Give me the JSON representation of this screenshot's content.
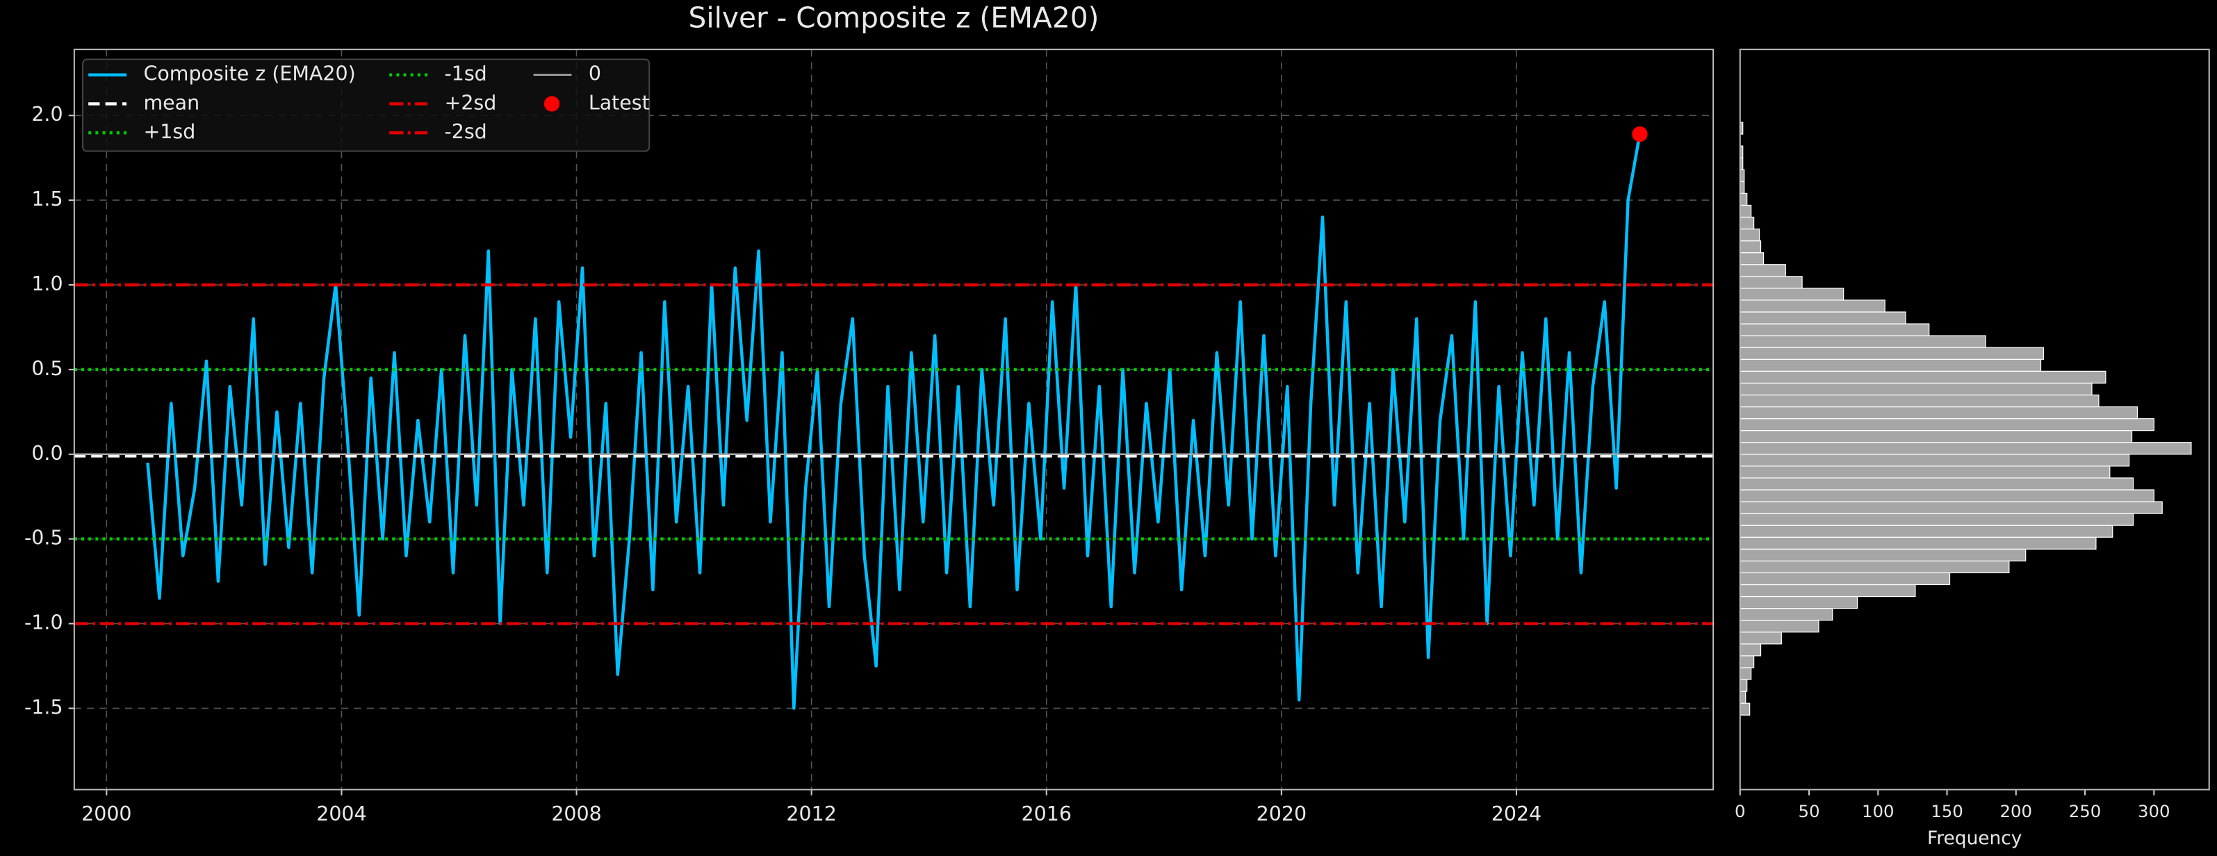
{
  "chart_data": [
    {
      "type": "line",
      "title": "Silver - Composite z (EMA20)",
      "xlim": [
        1999.45,
        2027.35
      ],
      "xticks": [
        2000,
        2004,
        2008,
        2012,
        2016,
        2020,
        2024
      ],
      "ylim": [
        -1.98,
        2.39
      ],
      "yticks": [
        -1.5,
        {
          "value": -1,
          "label": "-1.0"
        },
        -0.5,
        {
          "value": 0,
          "label": "0.0"
        },
        0.5,
        {
          "value": 1,
          "label": "1.0"
        },
        1.5,
        {
          "value": 2,
          "label": "2.0"
        }
      ],
      "grid": true,
      "legend": "upper left",
      "series": [
        {
          "name": "Composite z (EMA20)",
          "color": "#00bfff",
          "x": [
            2000.7,
            2000.9,
            2001.1,
            2001.3,
            2001.5,
            2001.7,
            2001.9,
            2002.1,
            2002.3,
            2002.5,
            2002.7,
            2002.9,
            2003.1,
            2003.3,
            2003.5,
            2003.7,
            2003.9,
            2004.1,
            2004.3,
            2004.5,
            2004.7,
            2004.9,
            2005.1,
            2005.3,
            2005.5,
            2005.7,
            2005.9,
            2006.1,
            2006.3,
            2006.5,
            2006.7,
            2006.9,
            2007.1,
            2007.3,
            2007.5,
            2007.7,
            2007.9,
            2008.1,
            2008.3,
            2008.5,
            2008.7,
            2008.9,
            2009.1,
            2009.3,
            2009.5,
            2009.7,
            2009.9,
            2010.1,
            2010.3,
            2010.5,
            2010.7,
            2010.9,
            2011.1,
            2011.3,
            2011.5,
            2011.7,
            2011.9,
            2012.1,
            2012.3,
            2012.5,
            2012.7,
            2012.9,
            2013.1,
            2013.3,
            2013.5,
            2013.7,
            2013.9,
            2014.1,
            2014.3,
            2014.5,
            2014.7,
            2014.9,
            2015.1,
            2015.3,
            2015.5,
            2015.7,
            2015.9,
            2016.1,
            2016.3,
            2016.5,
            2016.7,
            2016.9,
            2017.1,
            2017.3,
            2017.5,
            2017.7,
            2017.9,
            2018.1,
            2018.3,
            2018.5,
            2018.7,
            2018.9,
            2019.1,
            2019.3,
            2019.5,
            2019.7,
            2019.9,
            2020.1,
            2020.3,
            2020.5,
            2020.7,
            2020.9,
            2021.1,
            2021.3,
            2021.5,
            2021.7,
            2021.9,
            2022.1,
            2022.3,
            2022.5,
            2022.7,
            2022.9,
            2023.1,
            2023.3,
            2023.5,
            2023.7,
            2023.9,
            2024.1,
            2024.3,
            2024.5,
            2024.7,
            2024.9,
            2025.1,
            2025.3,
            2025.5,
            2025.7,
            2025.9,
            2026.1
          ],
          "values": [
            -0.05,
            -0.85,
            0.3,
            -0.6,
            -0.2,
            0.55,
            -0.75,
            0.4,
            -0.3,
            0.8,
            -0.65,
            0.25,
            -0.55,
            0.3,
            -0.7,
            0.45,
            1.0,
            0.1,
            -0.95,
            0.45,
            -0.5,
            0.6,
            -0.6,
            0.2,
            -0.4,
            0.5,
            -0.7,
            0.7,
            -0.3,
            1.2,
            -1.0,
            0.5,
            -0.3,
            0.8,
            -0.7,
            0.9,
            0.1,
            1.1,
            -0.6,
            0.3,
            -1.3,
            -0.5,
            0.6,
            -0.8,
            0.9,
            -0.4,
            0.4,
            -0.7,
            1.0,
            -0.3,
            1.1,
            0.2,
            1.2,
            -0.4,
            0.6,
            -1.5,
            -0.2,
            0.5,
            -0.9,
            0.3,
            0.8,
            -0.6,
            -1.25,
            0.4,
            -0.8,
            0.6,
            -0.4,
            0.7,
            -0.7,
            0.4,
            -0.9,
            0.5,
            -0.3,
            0.8,
            -0.8,
            0.3,
            -0.5,
            0.9,
            -0.2,
            1.0,
            -0.6,
            0.4,
            -0.9,
            0.5,
            -0.7,
            0.3,
            -0.4,
            0.5,
            -0.8,
            0.2,
            -0.6,
            0.6,
            -0.3,
            0.9,
            -0.5,
            0.7,
            -0.6,
            0.4,
            -1.45,
            0.3,
            1.4,
            -0.3,
            0.9,
            -0.7,
            0.3,
            -0.9,
            0.5,
            -0.4,
            0.8,
            -1.2,
            0.2,
            0.7,
            -0.5,
            0.9,
            -1.0,
            0.4,
            -0.6,
            0.6,
            -0.3,
            0.8,
            -0.5,
            0.6,
            -0.7,
            0.4,
            0.9,
            -0.2,
            1.5,
            1.89
          ]
        }
      ],
      "reference_lines": [
        {
          "name": "mean",
          "value": -0.01,
          "color": "#ffffff",
          "style": "dashed"
        },
        {
          "name": "+1sd",
          "value": 0.5,
          "color": "#00cc00",
          "style": "dotted"
        },
        {
          "name": "-1sd",
          "value": -0.5,
          "color": "#00cc00",
          "style": "dotted"
        },
        {
          "name": "+2sd",
          "value": 1,
          "color": "#e00000",
          "style": "dashdot"
        },
        {
          "name": "-2sd",
          "value": -1,
          "color": "#e00000",
          "style": "dashdot"
        },
        {
          "name": "0",
          "value": 0,
          "color": "#aaaaaa",
          "style": "solid"
        }
      ],
      "latest": {
        "name": "Latest",
        "x": 2026.1,
        "y": 1.89,
        "color": "#ff0000"
      }
    },
    {
      "type": "histogram",
      "orientation": "horizontal",
      "xlabel": "Frequency",
      "color": "#a6a6a6",
      "xlim": [
        0,
        340
      ],
      "xticks": [
        0,
        50,
        100,
        150,
        200,
        250,
        300
      ],
      "ylim": [
        -1.98,
        2.39
      ],
      "bins": [
        -1.54,
        -1.47,
        -1.4,
        -1.33,
        -1.26,
        -1.19,
        -1.12,
        -1.05,
        -0.98,
        -0.91,
        -0.84,
        -0.77,
        -0.7,
        -0.63,
        -0.56,
        -0.49,
        -0.42,
        -0.35,
        -0.28,
        -0.21,
        -0.14,
        -0.07,
        0,
        0.07,
        0.14,
        0.21,
        0.28,
        0.35,
        0.42,
        0.49,
        0.56,
        0.63,
        0.7,
        0.77,
        0.84,
        0.91,
        0.98,
        1.05,
        1.12,
        1.19,
        1.26,
        1.33,
        1.4,
        1.47,
        1.54,
        1.61,
        1.68,
        1.75,
        1.82,
        1.89,
        1.96
      ],
      "values": [
        7,
        4,
        5,
        8,
        10,
        15,
        30,
        57,
        67,
        85,
        127,
        152,
        195,
        207,
        258,
        270,
        285,
        306,
        300,
        285,
        268,
        282,
        327,
        284,
        300,
        288,
        260,
        255,
        265,
        218,
        220,
        178,
        137,
        120,
        105,
        75,
        45,
        33,
        17,
        15,
        14,
        10,
        8,
        5,
        3,
        3,
        2,
        2,
        0,
        2
      ]
    }
  ]
}
